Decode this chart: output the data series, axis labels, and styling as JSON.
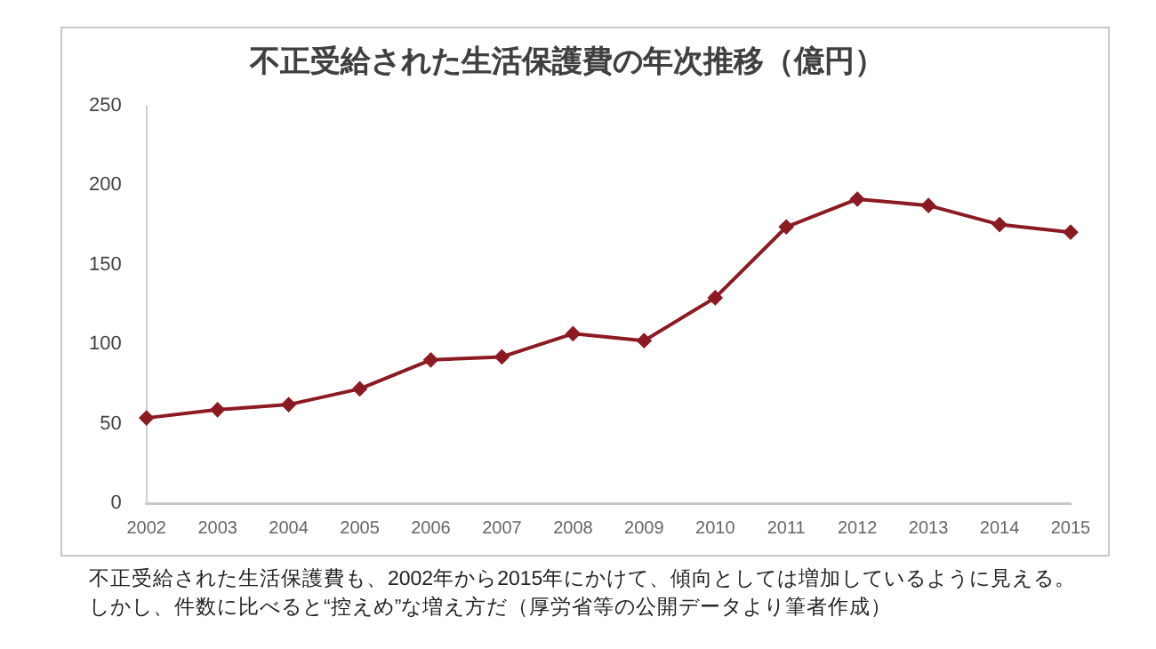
{
  "chart_data": {
    "type": "line",
    "title": "不正受給された生活保護費の年次推移（億円）",
    "categories": [
      "2002",
      "2003",
      "2004",
      "2005",
      "2006",
      "2007",
      "2008",
      "2009",
      "2010",
      "2011",
      "2012",
      "2013",
      "2014",
      "2015"
    ],
    "series": [
      {
        "color": "#8b1a22",
        "values": [
          53.6,
          58.8,
          62,
          71.9,
          90.1,
          92,
          106.6,
          102.2,
          129.2,
          173.7,
          191.2,
          187.2,
          175.2,
          170.4
        ]
      }
    ],
    "ylim": [
      0,
      250
    ],
    "yticks": [
      0,
      50,
      100,
      150,
      200,
      250
    ],
    "grid": false,
    "legend": false,
    "marker": "diamond",
    "line_style": "solid",
    "annotations": [
      "不正受給された生活保護費も、2002年から2015年にかけて、傾向としては増加しているように見える。",
      "しかし、件数に比べると“控えめ”な増え方だ（厚労省等の公開データより筆者作成）"
    ]
  }
}
